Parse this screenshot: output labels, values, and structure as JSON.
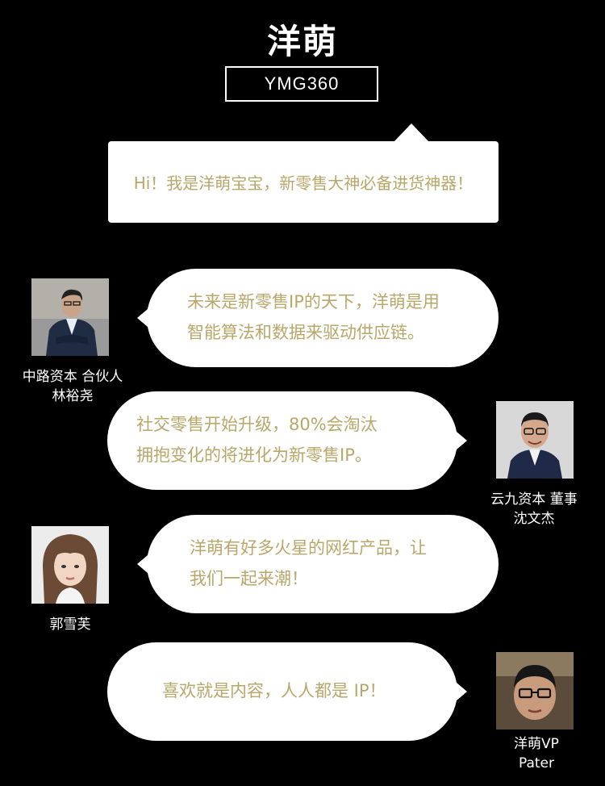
{
  "header": {
    "title": "洋萌",
    "code": "YMG360"
  },
  "intro": {
    "text": "Hi！我是洋萌宝宝，新零售大神必备进货神器！"
  },
  "quotes": [
    {
      "lines": [
        "未来是新零售IP的天下，洋萌是用",
        "智能算法和数据来驱动供应链。"
      ],
      "caption_lines": [
        "中路资本 合伙人",
        "林裕尧"
      ],
      "avatar_icon": "portrait-man-suit-icon"
    },
    {
      "lines": [
        "社交零售开始升级，80%会淘汰",
        "拥抱变化的将进化为新零售IP。"
      ],
      "caption_lines": [
        "云九资本  董事",
        "沈文杰"
      ],
      "avatar_icon": "portrait-man-glasses-icon"
    },
    {
      "lines": [
        "洋萌有好多火星的网红产品，让",
        "我们一起来潮！"
      ],
      "caption_lines": [
        "郭雪芙"
      ],
      "avatar_icon": "portrait-woman-icon"
    },
    {
      "lines": [
        "喜欢就是内容，人人都是 IP！"
      ],
      "caption_lines": [
        "洋萌VP",
        "Pater"
      ],
      "avatar_icon": "portrait-man-selfie-icon"
    }
  ],
  "colors": {
    "background": "#000000",
    "accent_text": "#b8a76a",
    "bubble": "#ffffff"
  }
}
